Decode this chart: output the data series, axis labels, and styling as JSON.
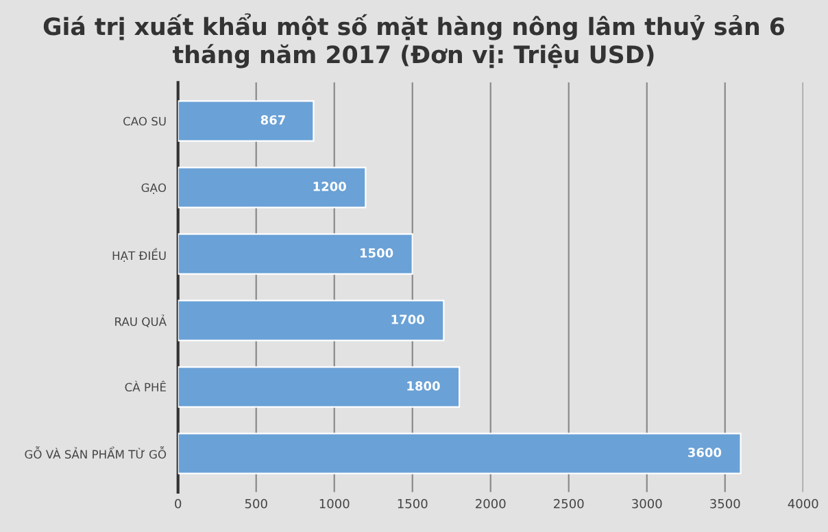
{
  "chart_data": {
    "type": "bar",
    "orientation": "horizontal",
    "title": "Giá trị xuất khẩu một số mặt hàng nông lâm thuỷ sản 6 tháng năm 2017 (Đơn vị: Triệu USD)",
    "categories": [
      "CAO SU",
      "GẠO",
      "HẠT ĐIỀU",
      "RAU QUẢ",
      "CÀ PHÊ",
      "GỖ VÀ SẢN PHẨM TỪ GỖ"
    ],
    "values": [
      867,
      1200,
      1500,
      1700,
      1800,
      3600
    ],
    "color": "#6aa1d6",
    "xlim": [
      0,
      4000
    ],
    "xticks": [
      0,
      500,
      1000,
      1500,
      2000,
      2500,
      3000,
      3500,
      4000
    ],
    "grid": "x",
    "data_labels": true,
    "legend": false
  }
}
